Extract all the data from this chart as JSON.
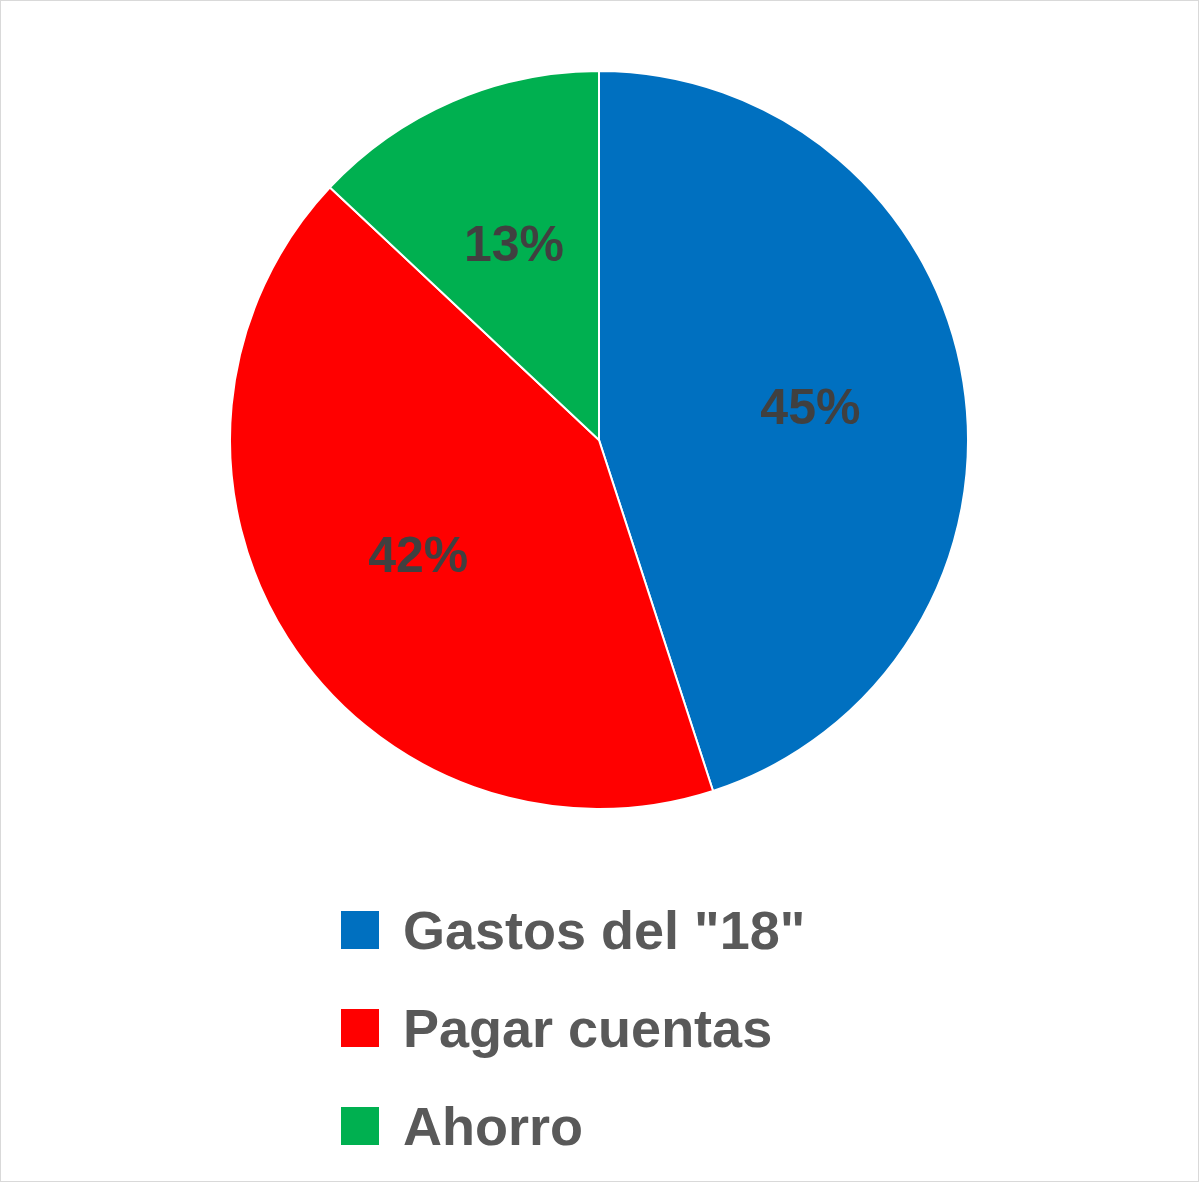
{
  "chart_data": {
    "type": "pie",
    "categories": [
      "Gastos del \"18\"",
      "Pagar cuentas",
      "Ahorro"
    ],
    "values": [
      45,
      42,
      13
    ],
    "colors": [
      "#0070c0",
      "#ff0000",
      "#00b050"
    ],
    "value_labels": [
      "45%",
      "42%",
      "13%"
    ],
    "legend": "bottom"
  }
}
